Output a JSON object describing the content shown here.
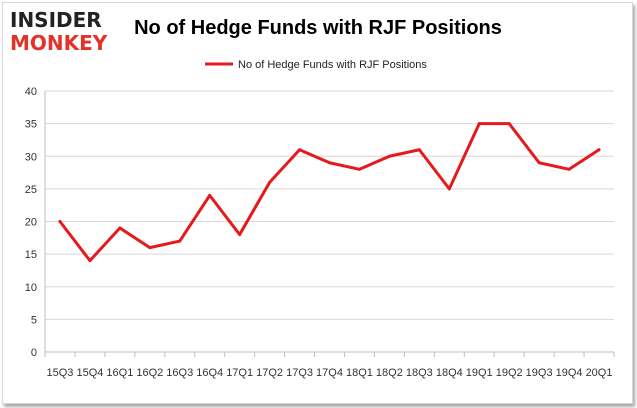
{
  "logo": {
    "top": "INSIDER",
    "bottom": "MONKEY"
  },
  "colors": {
    "series": "#e41a1c",
    "grid": "#d9d9d9",
    "logo_accent": "#e4322b"
  },
  "chart_data": {
    "type": "line",
    "title": "No of Hedge Funds with RJF Positions",
    "xlabel": "",
    "ylabel": "",
    "legend_position": "top-center",
    "grid": true,
    "ylim": [
      0,
      40
    ],
    "yticks": [
      0,
      5,
      10,
      15,
      20,
      25,
      30,
      35,
      40
    ],
    "categories": [
      "15Q3",
      "15Q4",
      "16Q1",
      "16Q2",
      "16Q3",
      "16Q4",
      "17Q1",
      "17Q2",
      "17Q3",
      "17Q4",
      "18Q1",
      "18Q2",
      "18Q3",
      "18Q4",
      "19Q1",
      "19Q2",
      "19Q3",
      "19Q4",
      "20Q1"
    ],
    "series": [
      {
        "name": "No of Hedge Funds with RJF Positions",
        "values": [
          20,
          14,
          19,
          16,
          17,
          24,
          18,
          26,
          31,
          29,
          28,
          30,
          31,
          25,
          35,
          35,
          29,
          28,
          31
        ]
      }
    ]
  }
}
